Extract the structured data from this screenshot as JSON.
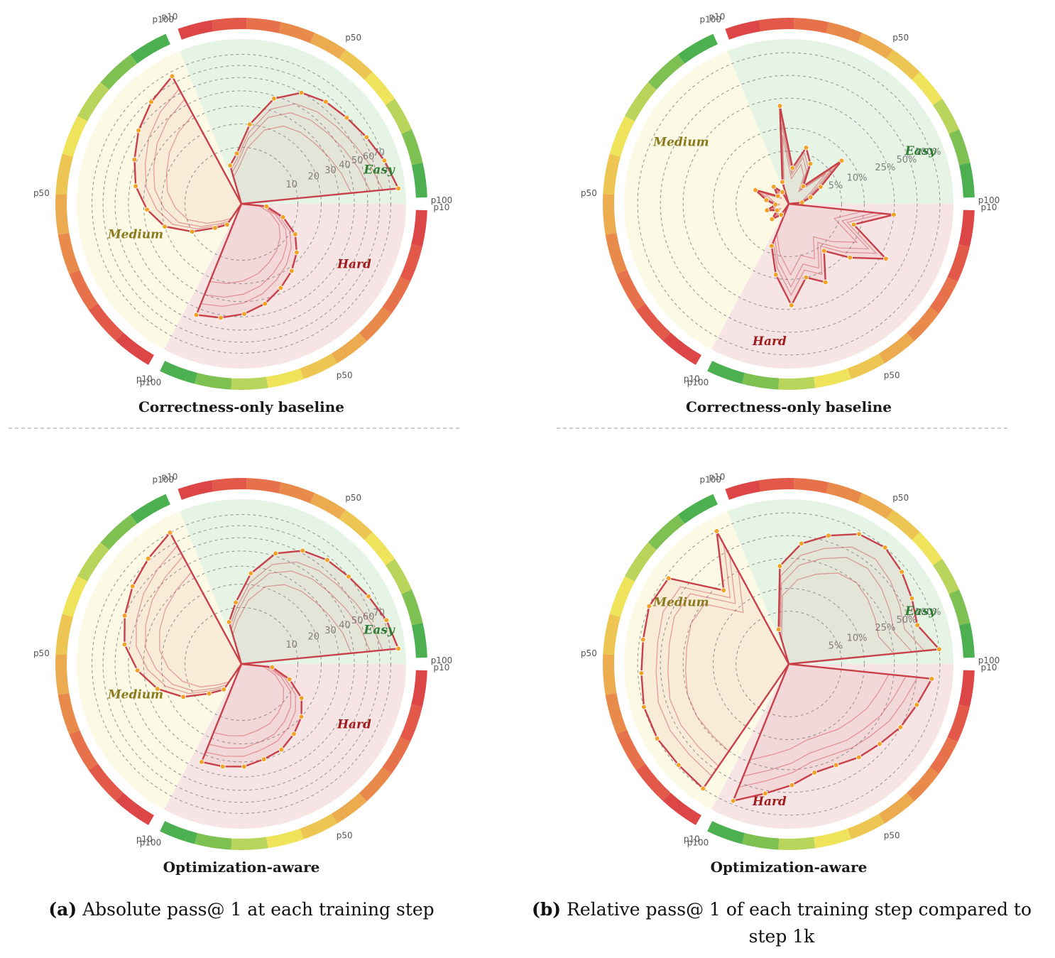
{
  "captions": {
    "a_tag": "(a)",
    "a_text": "Absolute pass@ 1 at each training step",
    "b_tag": "(b)",
    "b_text_line1": "Relative pass@ 1 of each training step compared to",
    "b_text_line2": "step 1k"
  },
  "colors": {
    "easy_bg": "#e5f4e4",
    "medium_bg": "#fcfae4",
    "hard_bg": "#f7e5e5",
    "easy_text": "#2e7d32",
    "medium_text": "#8a7a1e",
    "hard_text": "#a01c1c",
    "line": "#c8404a",
    "marker": "#f2a227"
  },
  "chart_data": [
    {
      "type": "radar",
      "title": "Correctness-only baseline",
      "scale": "sqrt",
      "rmax": 80,
      "radial_ticks": [
        "10",
        "20",
        "30",
        "40",
        "50",
        "60",
        "70"
      ],
      "radial_tick_values": [
        10,
        20,
        30,
        40,
        50,
        60,
        70
      ],
      "sectors": [
        {
          "name": "Easy",
          "ring_labels": [
            "p10",
            "p50",
            "p100"
          ],
          "values": [
            5,
            8,
            20,
            38,
            50,
            55,
            58,
            63,
            70,
            78
          ]
        },
        {
          "name": "Hard",
          "ring_labels": [
            "p10",
            "p50",
            "p100"
          ],
          "values": [
            2,
            6,
            12,
            17,
            22,
            27,
            33,
            38,
            42,
            45
          ]
        },
        {
          "name": "Medium",
          "ring_labels": [
            "p10",
            "p50",
            "p100"
          ],
          "values": [
            2,
            4,
            10,
            20,
            28,
            36,
            42,
            50,
            58,
            66
          ]
        }
      ]
    },
    {
      "type": "radar",
      "title": "Correctness-only baseline",
      "scale": "log",
      "radial_ticks": [
        "5%",
        "10%",
        "25%",
        "50%",
        "100%"
      ],
      "radial_tick_values": [
        5,
        10,
        25,
        50,
        100
      ],
      "sectors": [
        {
          "name": "Easy",
          "ring_labels": [
            "p10",
            "p50",
            "p100"
          ],
          "values": [
            2,
            20,
            3,
            6,
            4,
            2,
            8,
            3,
            2,
            1.5
          ]
        },
        {
          "name": "Hard",
          "ring_labels": [
            "p10",
            "p50",
            "p100"
          ],
          "values": [
            25,
            8,
            30,
            12,
            6,
            14,
            10,
            22,
            9,
            4
          ]
        },
        {
          "name": "Medium",
          "ring_labels": [
            "p10",
            "p50",
            "p100"
          ],
          "values": [
            1.5,
            2,
            1.5,
            2,
            1.5,
            2,
            3,
            1.5,
            2,
            1.5
          ]
        }
      ]
    },
    {
      "type": "radar",
      "title": "Optimization-aware",
      "scale": "sqrt",
      "rmax": 80,
      "radial_ticks": [
        "10",
        "20",
        "30",
        "40",
        "50",
        "60",
        "70"
      ],
      "radial_tick_values": [
        10,
        20,
        30,
        40,
        50,
        60,
        70
      ],
      "sectors": [
        {
          "name": "Easy",
          "ring_labels": [
            "p10",
            "p50",
            "p100"
          ],
          "values": [
            6,
            12,
            26,
            42,
            52,
            57,
            60,
            65,
            72,
            78
          ]
        },
        {
          "name": "Hard",
          "ring_labels": [
            "p10",
            "p50",
            "p100"
          ],
          "values": [
            3,
            8,
            15,
            20,
            24,
            28,
            30,
            33,
            34,
            35
          ]
        },
        {
          "name": "Medium",
          "ring_labels": [
            "p10",
            "p50",
            "p100"
          ],
          "values": [
            3,
            6,
            14,
            24,
            34,
            44,
            50,
            56,
            62,
            70
          ]
        }
      ]
    },
    {
      "type": "radar",
      "title": "Optimization-aware",
      "scale": "log",
      "radial_ticks": [
        "5%",
        "10%",
        "25%",
        "50%",
        "100%"
      ],
      "radial_tick_values": [
        5,
        10,
        25,
        50,
        100
      ],
      "sectors": [
        {
          "name": "Easy",
          "ring_labels": [
            "p10",
            "p50",
            "p100"
          ],
          "values": [
            3,
            20,
            40,
            60,
            90,
            100,
            85,
            70,
            60,
            100
          ]
        },
        {
          "name": "Hard",
          "ring_labels": [
            "p10",
            "p50",
            "p100"
          ],
          "values": [
            80,
            60,
            50,
            40,
            35,
            30,
            30,
            40,
            55,
            90
          ]
        },
        {
          "name": "Medium",
          "ring_labels": [
            "p10",
            "p50",
            "p100"
          ],
          "values": [
            100,
            95,
            100,
            100,
            90,
            90,
            100,
            90,
            20,
            100
          ]
        }
      ]
    }
  ]
}
